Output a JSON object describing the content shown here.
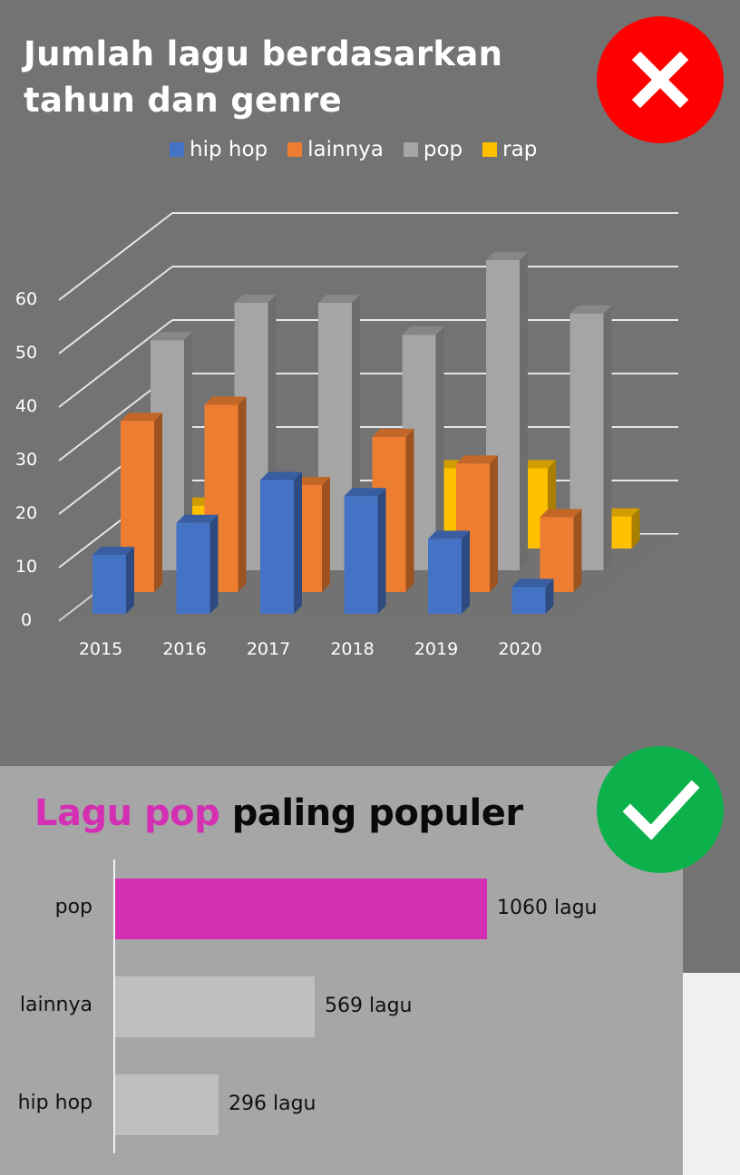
{
  "top": {
    "title_line1": "Jumlah lagu berdasarkan",
    "title_line2": "tahun dan genre",
    "badge": {
      "icon": "x-icon",
      "color": "#ff0000"
    }
  },
  "bottom": {
    "title_highlight": "Lagu pop",
    "title_rest": " paling populer",
    "badge": {
      "icon": "check-icon",
      "color": "#0db14b"
    }
  },
  "colors": {
    "hip_hop": "#4472c4",
    "lainnya": "#ed7d31",
    "pop": "#a5a5a5",
    "rap": "#ffc000",
    "highlight_bar": "#d42fb3",
    "muted_bar": "#bfbfbf"
  },
  "chart_data": [
    {
      "type": "bar",
      "variant": "3d-column",
      "title": "Jumlah lagu berdasarkan tahun dan genre",
      "categories": [
        "2015",
        "2016",
        "2017",
        "2018",
        "2019",
        "2020"
      ],
      "series": [
        {
          "name": "hip hop",
          "values": [
            11,
            17,
            25,
            22,
            14,
            5
          ]
        },
        {
          "name": "lainnya",
          "values": [
            32,
            35,
            20,
            29,
            24,
            14
          ]
        },
        {
          "name": "pop",
          "values": [
            43,
            50,
            50,
            44,
            58,
            48
          ]
        },
        {
          "name": "rap",
          "values": [
            8,
            0,
            0,
            15,
            15,
            6
          ]
        }
      ],
      "yticks": [
        "0",
        "10",
        "20",
        "30",
        "40",
        "50",
        "60"
      ],
      "ylim": [
        0,
        60
      ],
      "xlabel": "",
      "ylabel": "",
      "legend_position": "top",
      "grid": true
    },
    {
      "type": "bar",
      "orientation": "horizontal",
      "title": "Lagu pop paling populer",
      "categories": [
        "pop",
        "lainnya",
        "hip hop"
      ],
      "values": [
        1060,
        569,
        296
      ],
      "value_labels": [
        "1060 lagu",
        "569 lagu",
        "296 lagu"
      ],
      "highlight": "pop"
    }
  ]
}
